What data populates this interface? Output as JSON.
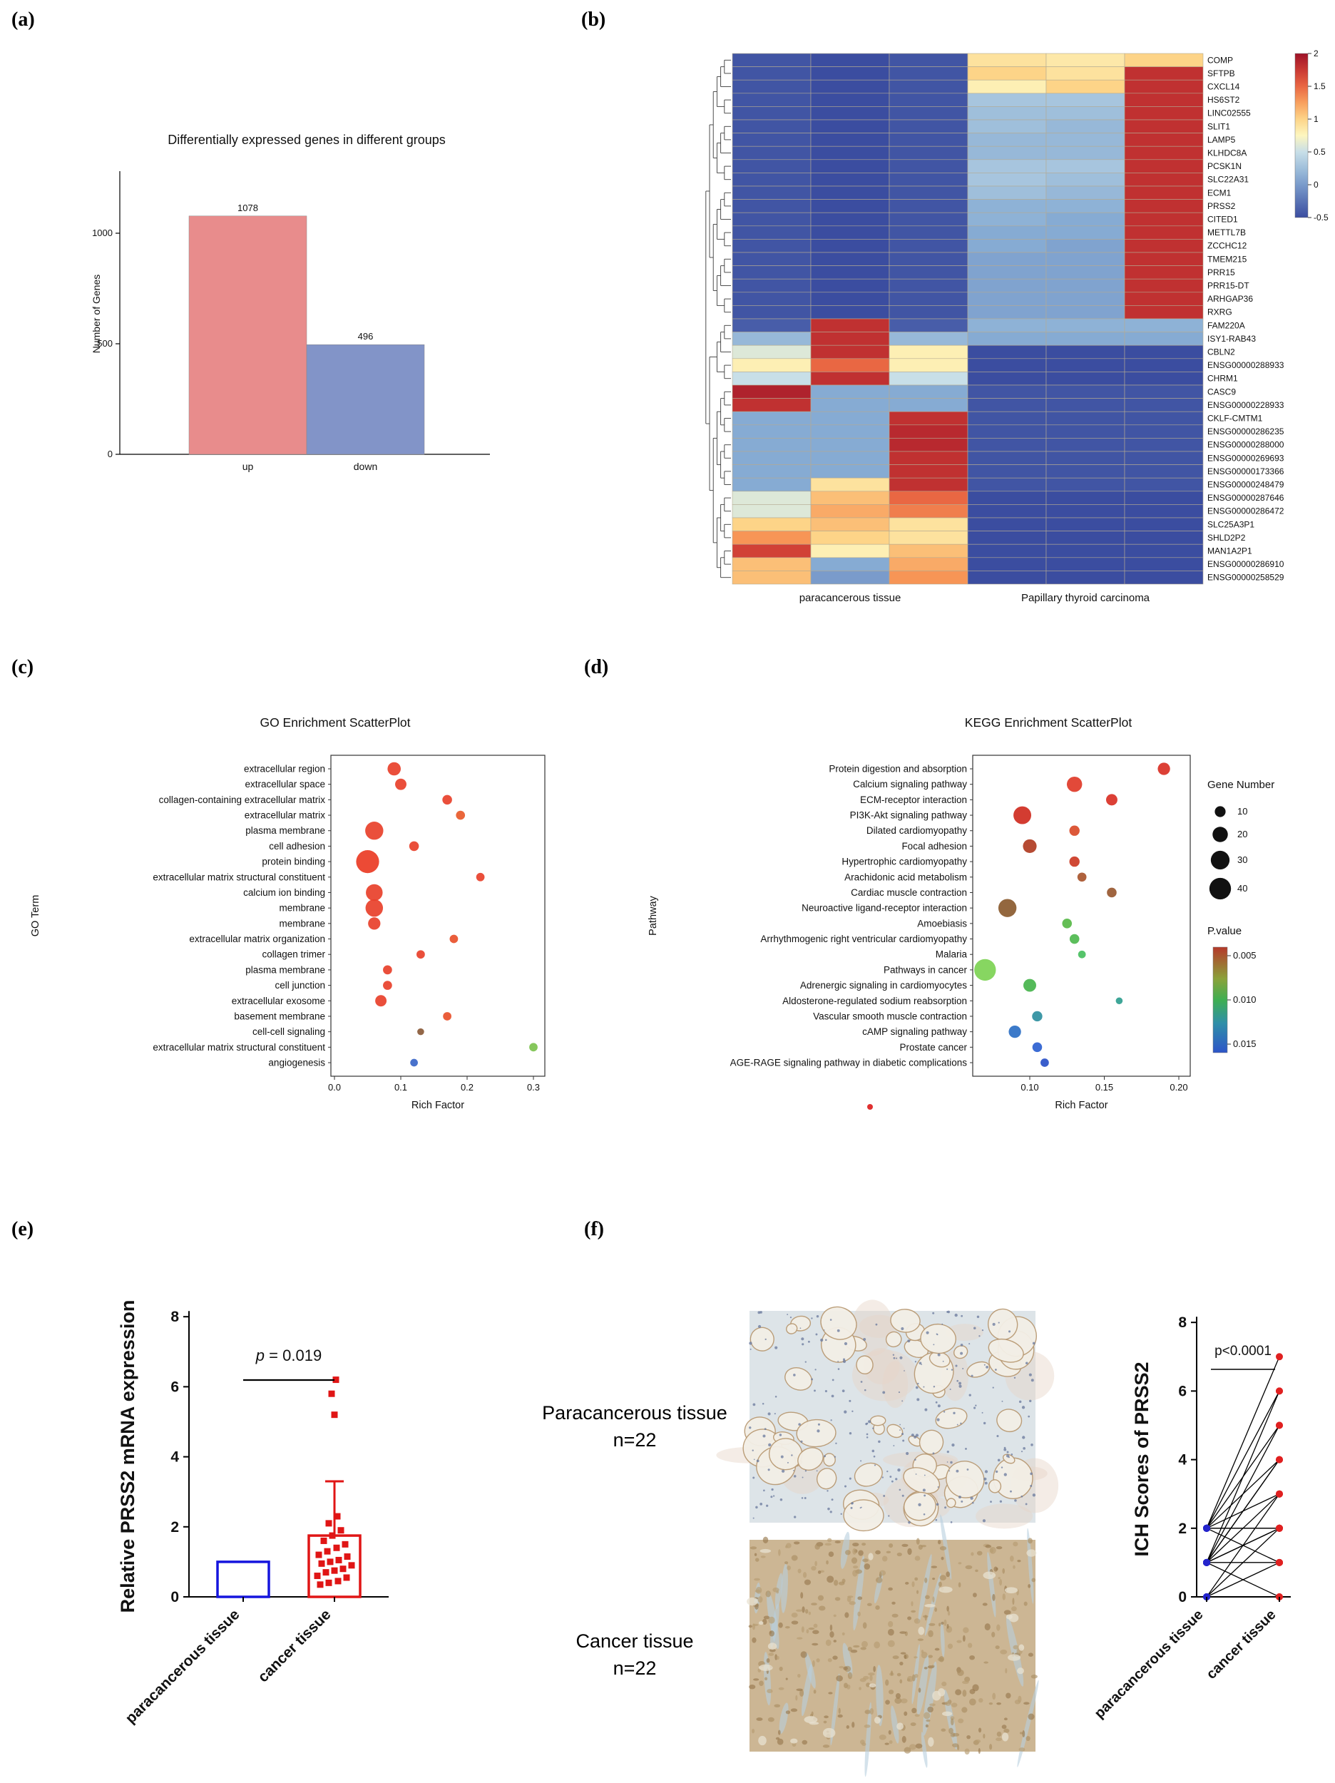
{
  "panel_labels": {
    "a": "(a)",
    "b": "(b)",
    "c": "(c)",
    "d": "(d)",
    "e": "(e)",
    "f": "(f)"
  },
  "panel_f_texts": {
    "para_line1": "Paracancerous tissue",
    "para_line2": "n=22",
    "cancer_line1": "Cancer tissue",
    "cancer_line2": "n=22"
  },
  "chart_data": [
    {
      "panel": "a",
      "type": "bar",
      "title": "Differentially expressed genes in different groups",
      "ylabel": "Number of Genes",
      "categories": [
        "up",
        "down"
      ],
      "values": [
        1078,
        496
      ],
      "value_labels": [
        "1078",
        "496"
      ],
      "bar_colors": [
        "#e88c8c",
        "#8294c8"
      ],
      "yticks": [
        0,
        500,
        1000
      ],
      "ylim": [
        0,
        1280
      ]
    },
    {
      "panel": "b",
      "type": "heatmap",
      "rows": [
        "COMP",
        "SFTPB",
        "CXCL14",
        "HS6ST2",
        "LINC02555",
        "SLIT1",
        "LAMP5",
        "KLHDC8A",
        "PCSK1N",
        "SLC22A31",
        "ECM1",
        "PRSS2",
        "CITED1",
        "METTL7B",
        "ZCCHC12",
        "TMEM215",
        "PRR15",
        "PRR15-DT",
        "ARHGAP36",
        "RXRG",
        "FAM220A",
        "ISY1-RAB43",
        "CBLN2",
        "ENSG00000288933",
        "CHRM1",
        "CASC9",
        "ENSG00000228933",
        "CKLF-CMTM1",
        "ENSG00000286235",
        "ENSG00000288000",
        "ENSG00000269693",
        "ENSG00000173366",
        "ENSG00000248479",
        "ENSG00000287646",
        "ENSG00000286472",
        "SLC25A3P1",
        "SHLD2P2",
        "MAN1A2P1",
        "ENSG00000286910",
        "ENSG00000258529"
      ],
      "n_cols": 6,
      "col_group_labels": [
        "paracancerous tissue",
        "Papillary thyroid carcinoma"
      ],
      "colorbar_ticks": [
        "2",
        "1.5",
        "1",
        "0.5",
        "0",
        "-0.5"
      ],
      "colorbar_tick_values": [
        2,
        1.5,
        1,
        0.5,
        0,
        -0.5
      ],
      "vmin": -0.5,
      "vmax": 2,
      "values": [
        [
          -0.45,
          -0.5,
          -0.45,
          0.9,
          0.85,
          1.0
        ],
        [
          -0.45,
          -0.5,
          -0.45,
          1.0,
          0.9,
          1.8
        ],
        [
          -0.45,
          -0.5,
          -0.45,
          0.8,
          1.0,
          1.8
        ],
        [
          -0.45,
          -0.5,
          -0.45,
          0.3,
          0.3,
          1.8
        ],
        [
          -0.45,
          -0.5,
          -0.45,
          0.25,
          0.25,
          1.8
        ],
        [
          -0.45,
          -0.5,
          -0.45,
          0.25,
          0.2,
          1.8
        ],
        [
          -0.45,
          -0.5,
          -0.45,
          0.2,
          0.2,
          1.8
        ],
        [
          -0.45,
          -0.5,
          -0.45,
          0.2,
          0.2,
          1.8
        ],
        [
          -0.45,
          -0.5,
          -0.45,
          0.3,
          0.3,
          1.8
        ],
        [
          -0.45,
          -0.5,
          -0.45,
          0.3,
          0.25,
          1.8
        ],
        [
          -0.45,
          -0.5,
          -0.45,
          0.25,
          0.2,
          1.8
        ],
        [
          -0.45,
          -0.5,
          -0.45,
          0.15,
          0.15,
          1.8
        ],
        [
          -0.45,
          -0.5,
          -0.45,
          0.15,
          0.1,
          1.8
        ],
        [
          -0.45,
          -0.5,
          -0.45,
          0.1,
          0.1,
          1.8
        ],
        [
          -0.45,
          -0.5,
          -0.45,
          0.1,
          0.05,
          1.8
        ],
        [
          -0.45,
          -0.5,
          -0.45,
          0.05,
          0.05,
          1.8
        ],
        [
          -0.45,
          -0.5,
          -0.45,
          0.05,
          0.05,
          1.8
        ],
        [
          -0.45,
          -0.5,
          -0.45,
          0.05,
          0.05,
          1.8
        ],
        [
          -0.45,
          -0.5,
          -0.45,
          0.05,
          0.05,
          1.8
        ],
        [
          -0.45,
          -0.5,
          -0.45,
          0.05,
          0.05,
          1.8
        ],
        [
          -0.4,
          1.8,
          -0.4,
          0.15,
          0.15,
          0.15
        ],
        [
          0.2,
          1.8,
          0.2,
          0.1,
          0.1,
          0.1
        ],
        [
          0.6,
          1.8,
          0.8,
          -0.5,
          -0.5,
          -0.5
        ],
        [
          0.8,
          1.5,
          0.8,
          -0.5,
          -0.5,
          -0.5
        ],
        [
          0.5,
          1.8,
          0.5,
          -0.5,
          -0.5,
          -0.5
        ],
        [
          1.9,
          0.1,
          0.1,
          -0.45,
          -0.45,
          -0.45
        ],
        [
          1.8,
          0.1,
          0.1,
          -0.45,
          -0.45,
          -0.45
        ],
        [
          0.1,
          0.1,
          1.8,
          -0.45,
          -0.45,
          -0.45
        ],
        [
          0.1,
          0.1,
          1.85,
          -0.45,
          -0.45,
          -0.45
        ],
        [
          0.1,
          0.1,
          1.85,
          -0.45,
          -0.45,
          -0.45
        ],
        [
          0.1,
          0.1,
          1.8,
          -0.45,
          -0.45,
          -0.45
        ],
        [
          0.1,
          0.1,
          1.8,
          -0.45,
          -0.45,
          -0.45
        ],
        [
          0.1,
          0.9,
          1.8,
          -0.45,
          -0.45,
          -0.45
        ],
        [
          0.6,
          1.1,
          1.5,
          -0.5,
          -0.5,
          -0.5
        ],
        [
          0.6,
          1.2,
          1.4,
          -0.5,
          -0.5,
          -0.5
        ],
        [
          1.0,
          1.1,
          0.9,
          -0.5,
          -0.5,
          -0.5
        ],
        [
          1.3,
          1.0,
          0.9,
          -0.5,
          -0.5,
          -0.5
        ],
        [
          1.7,
          0.8,
          1.1,
          -0.5,
          -0.5,
          -0.5
        ],
        [
          1.1,
          0.1,
          1.2,
          -0.5,
          -0.5,
          -0.5
        ],
        [
          1.1,
          0.0,
          1.3,
          -0.5,
          -0.5,
          -0.5
        ]
      ]
    },
    {
      "panel": "c",
      "type": "scatter",
      "title": "GO Enrichment ScatterPlot",
      "xlabel": "Rich Factor",
      "ylabel": "GO Term",
      "xtick_values": [
        0.0,
        0.1,
        0.2,
        0.3
      ],
      "xtick_labels": [
        "0.0",
        "0.1",
        "0.2",
        "0.3"
      ],
      "terms": [
        "extracellular region",
        "extracellular space",
        "collagen-containing extracellular matrix",
        "extracellular matrix",
        "plasma membrane",
        "cell adhesion",
        "protein binding",
        "extracellular matrix structural constituent",
        "calcium ion binding",
        "membrane",
        "membrane",
        "extracellular matrix organization",
        "collagen trimer",
        "plasma membrane",
        "cell junction",
        "extracellular exosome",
        "basement membrane",
        "cell-cell signaling",
        "extracellular matrix structural constituent",
        "angiogenesis"
      ],
      "points": [
        {
          "x": 0.09,
          "n": 15,
          "color": "#e8402a"
        },
        {
          "x": 0.1,
          "n": 11,
          "color": "#e8402a"
        },
        {
          "x": 0.17,
          "n": 8,
          "color": "#e8402a"
        },
        {
          "x": 0.19,
          "n": 7,
          "color": "#e85a2a"
        },
        {
          "x": 0.06,
          "n": 28,
          "color": "#e8402a"
        },
        {
          "x": 0.12,
          "n": 8,
          "color": "#e8402a"
        },
        {
          "x": 0.05,
          "n": 45,
          "color": "#ea3b24"
        },
        {
          "x": 0.22,
          "n": 6,
          "color": "#e8402a"
        },
        {
          "x": 0.06,
          "n": 24,
          "color": "#e8402a"
        },
        {
          "x": 0.06,
          "n": 26,
          "color": "#e8402a"
        },
        {
          "x": 0.06,
          "n": 13,
          "color": "#e8402a"
        },
        {
          "x": 0.18,
          "n": 6,
          "color": "#e8502a"
        },
        {
          "x": 0.13,
          "n": 6,
          "color": "#e8402a"
        },
        {
          "x": 0.08,
          "n": 7,
          "color": "#e8402a"
        },
        {
          "x": 0.08,
          "n": 7,
          "color": "#e8402a"
        },
        {
          "x": 0.07,
          "n": 11,
          "color": "#e8402a"
        },
        {
          "x": 0.17,
          "n": 6,
          "color": "#e8502a"
        },
        {
          "x": 0.13,
          "n": 4,
          "color": "#8a5a38"
        },
        {
          "x": 0.3,
          "n": 6,
          "color": "#7cc24e"
        },
        {
          "x": 0.12,
          "n": 5,
          "color": "#3a66c8"
        }
      ]
    },
    {
      "panel": "d",
      "type": "scatter",
      "title": "KEGG Enrichment ScatterPlot",
      "xlabel": "Rich Factor",
      "ylabel": "Pathway",
      "xtick_values": [
        0.1,
        0.15,
        0.2
      ],
      "xtick_labels": [
        "0.10",
        "0.15",
        "0.20"
      ],
      "terms": [
        "Protein digestion and absorption",
        "Calcium signaling pathway",
        "ECM-receptor interaction",
        "PI3K-Akt signaling pathway",
        "Dilated cardiomyopathy",
        "Focal adhesion",
        "Hypertrophic cardiomyopathy",
        "Arachidonic acid metabolism",
        "Cardiac muscle contraction",
        "Neuroactive ligand-receptor interaction",
        "Amoebiasis",
        "Arrhythmogenic right ventricular cardiomyopathy",
        "Malaria",
        "Pathways in cancer",
        "Adrenergic signaling in cardiomyocytes",
        "Aldosterone-regulated sodium reabsorption",
        "Vascular smooth muscle contraction",
        "cAMP signaling pathway",
        "Prostate cancer",
        "AGE-RAGE signaling pathway in diabetic complications"
      ],
      "points": [
        {
          "x": 0.19,
          "n": 13,
          "color": "#d93025"
        },
        {
          "x": 0.13,
          "n": 20,
          "color": "#e03a28"
        },
        {
          "x": 0.155,
          "n": 11,
          "color": "#d93025"
        },
        {
          "x": 0.095,
          "n": 27,
          "color": "#cf2b20"
        },
        {
          "x": 0.13,
          "n": 9,
          "color": "#d94a28"
        },
        {
          "x": 0.1,
          "n": 16,
          "color": "#b03c22"
        },
        {
          "x": 0.13,
          "n": 9,
          "color": "#cc3a24"
        },
        {
          "x": 0.135,
          "n": 7,
          "color": "#a8552c"
        },
        {
          "x": 0.155,
          "n": 8,
          "color": "#985830"
        },
        {
          "x": 0.085,
          "n": 28,
          "color": "#8a5a2e"
        },
        {
          "x": 0.125,
          "n": 8,
          "color": "#57b847"
        },
        {
          "x": 0.13,
          "n": 8,
          "color": "#4eb84e"
        },
        {
          "x": 0.135,
          "n": 5,
          "color": "#48bf5e"
        },
        {
          "x": 0.07,
          "n": 40,
          "color": "#7dd354"
        },
        {
          "x": 0.1,
          "n": 14,
          "color": "#46b44c"
        },
        {
          "x": 0.16,
          "n": 4,
          "color": "#2f9e8f"
        },
        {
          "x": 0.105,
          "n": 9,
          "color": "#2e8fa0"
        },
        {
          "x": 0.09,
          "n": 13,
          "color": "#2b6fc4"
        },
        {
          "x": 0.105,
          "n": 8,
          "color": "#2b5fd0"
        },
        {
          "x": 0.11,
          "n": 6,
          "color": "#2950c8"
        }
      ],
      "legend": {
        "size_title": "Gene Number",
        "sizes": [
          10,
          20,
          30,
          40
        ],
        "color_title": "P.value",
        "color_ticks": [
          "0.005",
          "0.010",
          "0.015"
        ]
      }
    },
    {
      "panel": "e",
      "type": "bar-scatter",
      "ylabel": "Relative PRSS2 mRNA expression",
      "categories": [
        "paracancerous tissue",
        "cancer tissue"
      ],
      "bar_values": [
        1.0,
        1.75
      ],
      "bar_colors": [
        "#1515dd",
        "#e01515"
      ],
      "error_high": 3.3,
      "p_label": "p = 0.019",
      "yticks": [
        0,
        2,
        4,
        6,
        8
      ],
      "ylim": [
        0,
        8
      ],
      "scatter": [
        [
          -20,
          0.35
        ],
        [
          -8,
          0.4
        ],
        [
          5,
          0.45
        ],
        [
          17,
          0.55
        ],
        [
          -24,
          0.6
        ],
        [
          -12,
          0.7
        ],
        [
          0,
          0.75
        ],
        [
          12,
          0.8
        ],
        [
          24,
          0.9
        ],
        [
          -18,
          0.95
        ],
        [
          -6,
          1.0
        ],
        [
          6,
          1.05
        ],
        [
          18,
          1.15
        ],
        [
          -22,
          1.2
        ],
        [
          -10,
          1.3
        ],
        [
          3,
          1.4
        ],
        [
          15,
          1.5
        ],
        [
          -15,
          1.6
        ],
        [
          -3,
          1.75
        ],
        [
          9,
          1.9
        ],
        [
          -8,
          2.1
        ],
        [
          4,
          2.3
        ],
        [
          0,
          5.2
        ],
        [
          -4,
          5.8
        ],
        [
          2,
          6.2
        ]
      ]
    },
    {
      "panel": "f",
      "type": "paired-line",
      "ylabel": "ICH Scores of PRSS2",
      "p_label": "p<0.0001",
      "categories": [
        "paracancerous tissue",
        "cancer tissue"
      ],
      "yticks": [
        0,
        2,
        4,
        6,
        8
      ],
      "ylim": [
        0,
        8
      ],
      "pairs": [
        [
          2,
          7
        ],
        [
          1,
          6
        ],
        [
          2,
          6
        ],
        [
          1,
          5
        ],
        [
          2,
          5
        ],
        [
          1,
          4
        ],
        [
          2,
          4
        ],
        [
          1,
          4
        ],
        [
          0,
          3
        ],
        [
          1,
          3
        ],
        [
          2,
          3
        ],
        [
          1,
          2
        ],
        [
          2,
          2
        ],
        [
          0,
          2
        ],
        [
          1,
          2
        ],
        [
          2,
          2
        ],
        [
          1,
          1
        ],
        [
          0,
          1
        ],
        [
          1,
          1
        ],
        [
          2,
          1
        ],
        [
          1,
          0
        ],
        [
          0,
          0
        ]
      ],
      "point_colors": {
        "left": "#2424cc",
        "right": "#e02020"
      }
    }
  ]
}
